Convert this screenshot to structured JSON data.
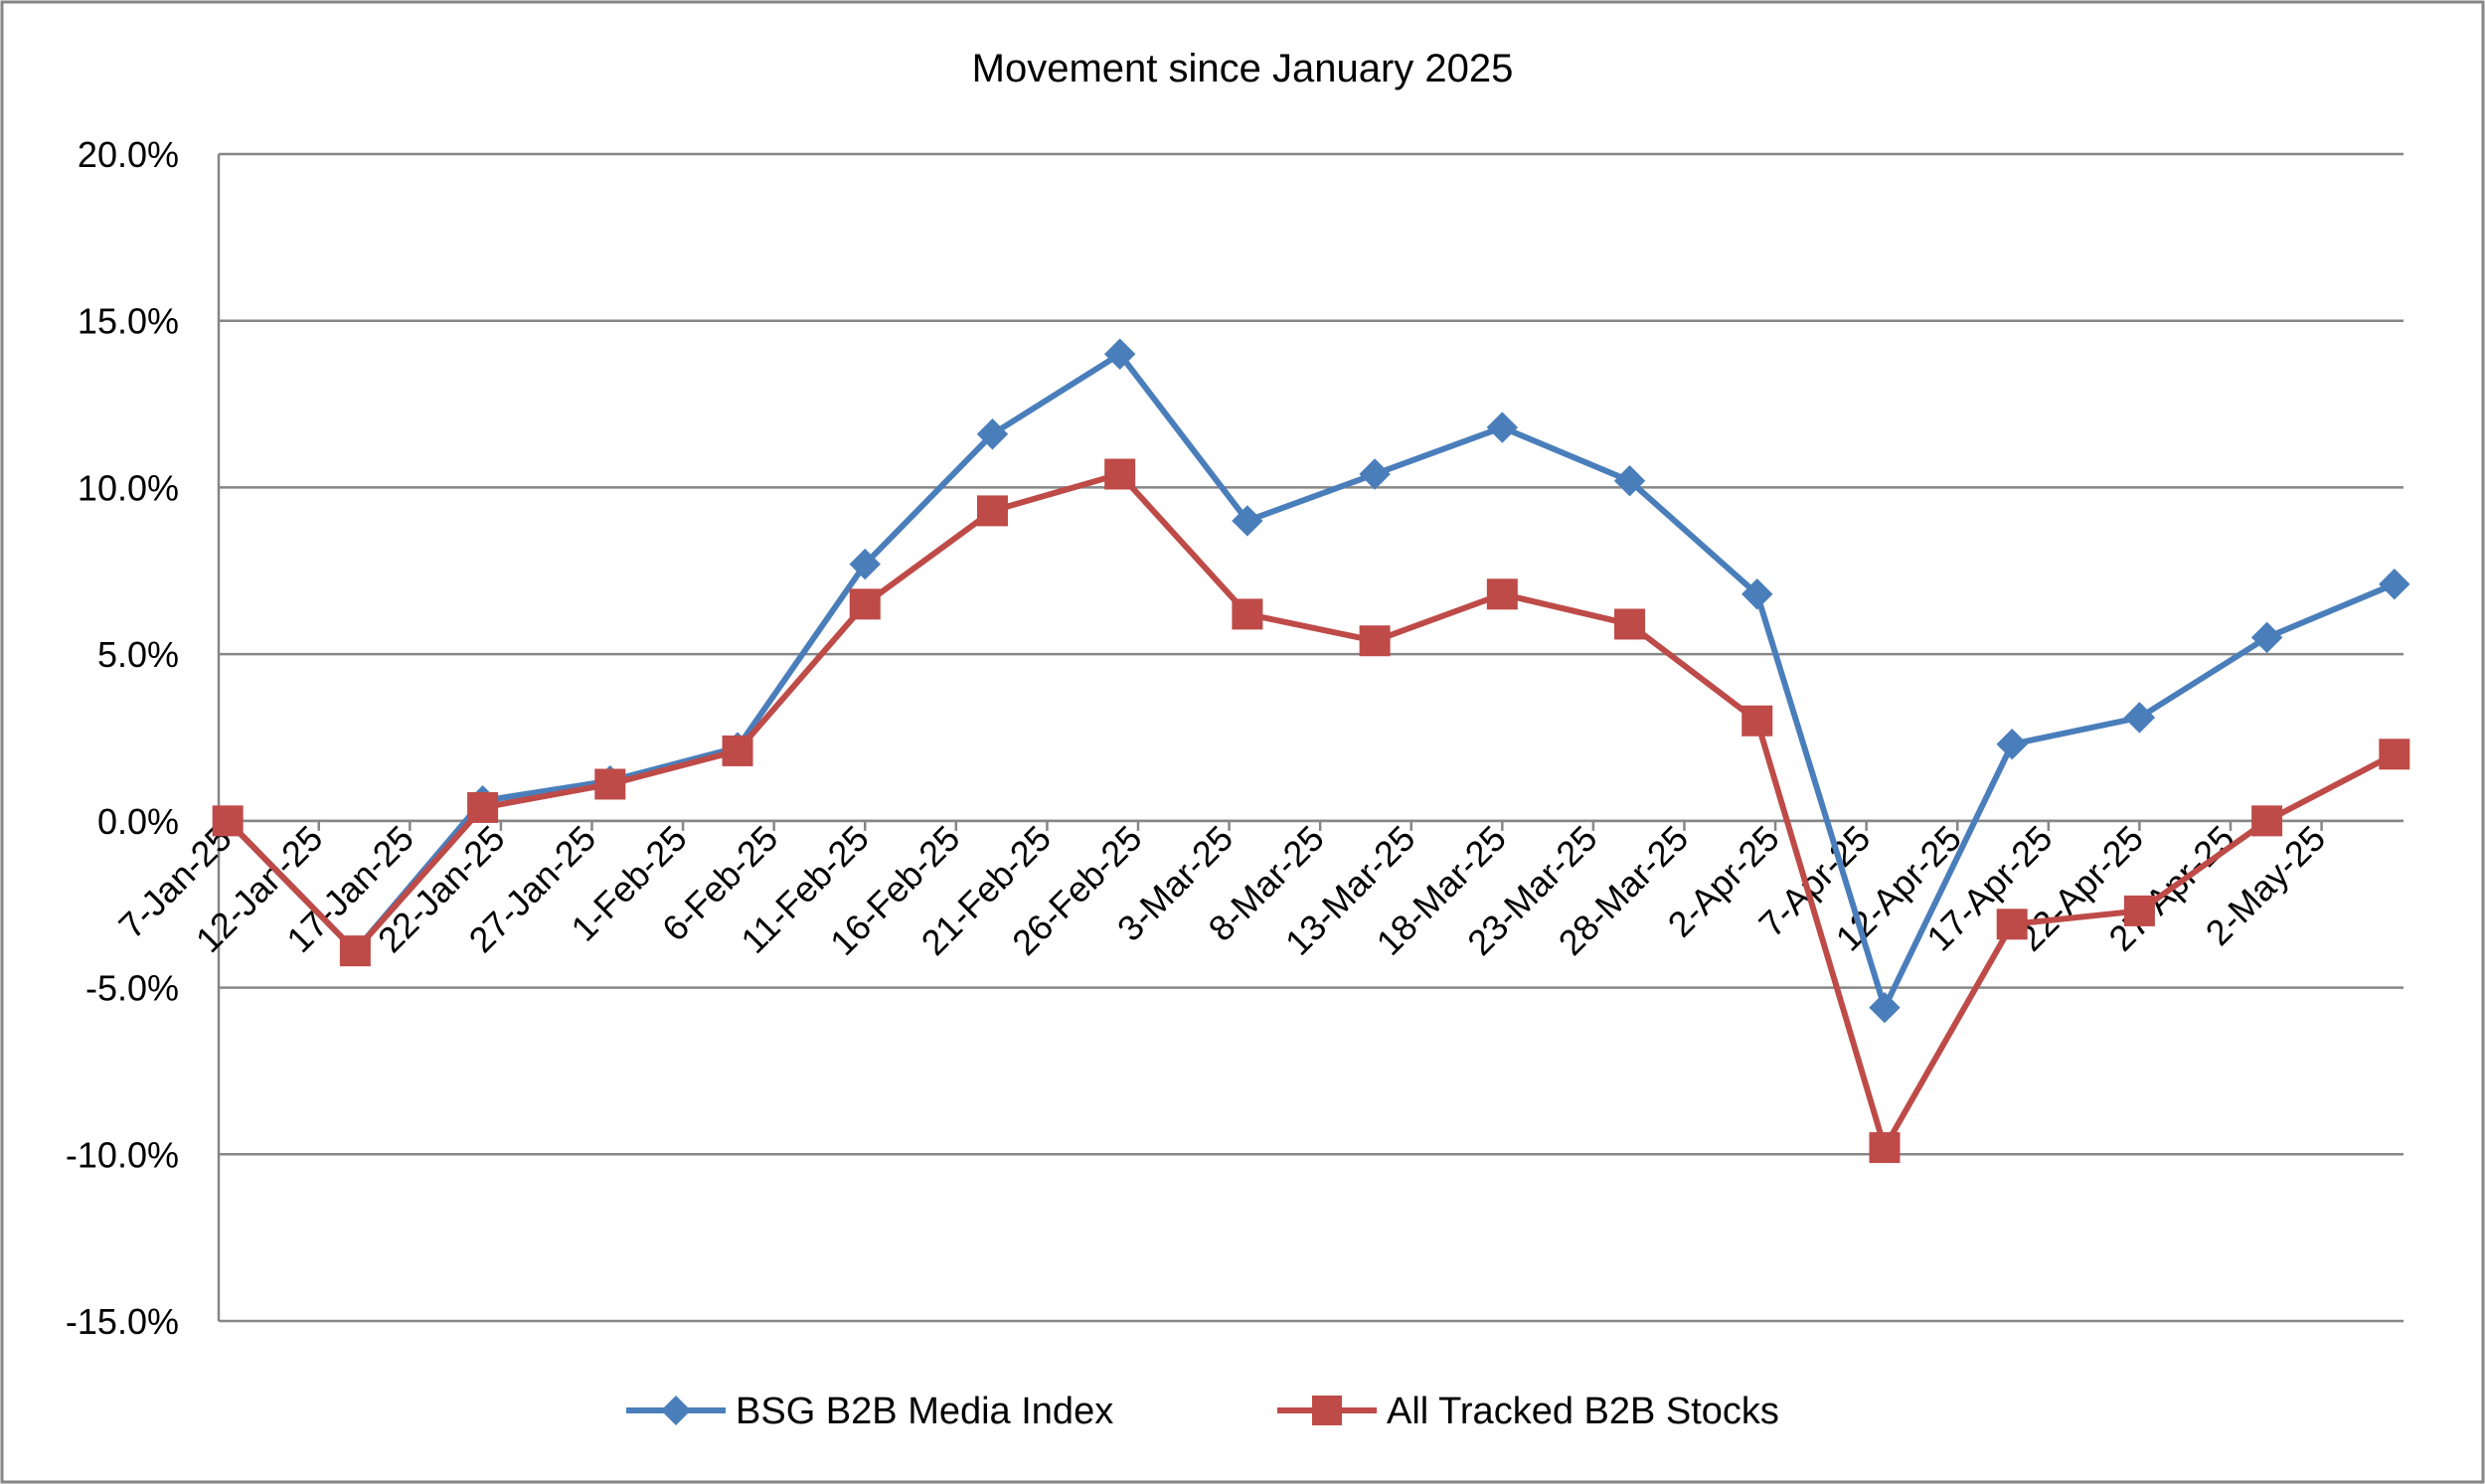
{
  "chart_data": {
    "type": "line",
    "title": "Movement since January 2025",
    "x": [
      "2025-01-07",
      "2025-01-14",
      "2025-01-21",
      "2025-01-28",
      "2025-02-04",
      "2025-02-11",
      "2025-02-18",
      "2025-02-25",
      "2025-03-04",
      "2025-03-11",
      "2025-03-18",
      "2025-03-25",
      "2025-04-01",
      "2025-04-08",
      "2025-04-15",
      "2025-04-22",
      "2025-04-29",
      "2025-05-06"
    ],
    "xticks": [
      {
        "value": "2025-01-07",
        "label": "7-Jan-25"
      },
      {
        "value": "2025-01-12",
        "label": "12-Jan-25"
      },
      {
        "value": "2025-01-17",
        "label": "17-Jan-25"
      },
      {
        "value": "2025-01-22",
        "label": "22-Jan-25"
      },
      {
        "value": "2025-01-27",
        "label": "27-Jan-25"
      },
      {
        "value": "2025-02-01",
        "label": "1-Feb-25"
      },
      {
        "value": "2025-02-06",
        "label": "6-Feb-25"
      },
      {
        "value": "2025-02-11",
        "label": "11-Feb-25"
      },
      {
        "value": "2025-02-16",
        "label": "16-Feb-25"
      },
      {
        "value": "2025-02-21",
        "label": "21-Feb-25"
      },
      {
        "value": "2025-02-26",
        "label": "26-Feb-25"
      },
      {
        "value": "2025-03-03",
        "label": "3-Mar-25"
      },
      {
        "value": "2025-03-08",
        "label": "8-Mar-25"
      },
      {
        "value": "2025-03-13",
        "label": "13-Mar-25"
      },
      {
        "value": "2025-03-18",
        "label": "18-Mar-25"
      },
      {
        "value": "2025-03-23",
        "label": "23-Mar-25"
      },
      {
        "value": "2025-03-28",
        "label": "28-Mar-25"
      },
      {
        "value": "2025-04-02",
        "label": "2-Apr-25"
      },
      {
        "value": "2025-04-07",
        "label": "7-Apr-25"
      },
      {
        "value": "2025-04-12",
        "label": "12-Apr-25"
      },
      {
        "value": "2025-04-17",
        "label": "17-Apr-25"
      },
      {
        "value": "2025-04-22",
        "label": "22-Apr-25"
      },
      {
        "value": "2025-04-27",
        "label": "27-Apr-25"
      },
      {
        "value": "2025-05-02",
        "label": "2-May-25"
      }
    ],
    "xlim": [
      "2025-01-07",
      "2025-05-06"
    ],
    "series": [
      {
        "name": "BSG B2B Media Index",
        "color": "#4a7ebb",
        "marker": "diamond",
        "values": [
          0,
          -3.9,
          0.6,
          1.2,
          2.2,
          7.7,
          11.6,
          14.0,
          9.0,
          10.4,
          11.8,
          10.2,
          6.8,
          -5.6,
          2.3,
          3.1,
          5.5,
          7.1
        ]
      },
      {
        "name": "All Tracked B2B Stocks",
        "color": "#be4b48",
        "marker": "square",
        "values": [
          0,
          -3.9,
          0.4,
          1.1,
          2.1,
          6.5,
          9.3,
          10.4,
          6.2,
          5.4,
          6.8,
          5.9,
          3.0,
          -9.8,
          -3.1,
          -2.7,
          0,
          2.0
        ]
      }
    ],
    "ylim": [
      -15,
      20
    ],
    "yticks": [
      {
        "value": -15,
        "label": "-15.0%"
      },
      {
        "value": -10,
        "label": "-10.0%"
      },
      {
        "value": -5,
        "label": "-5.0%"
      },
      {
        "value": 0,
        "label": "0.0%"
      },
      {
        "value": 5,
        "label": "5.0%"
      },
      {
        "value": 10,
        "label": "10.0%"
      },
      {
        "value": 15,
        "label": "15.0%"
      },
      {
        "value": 20,
        "label": "20.0%"
      }
    ],
    "grid": true,
    "legend": "bottom"
  }
}
